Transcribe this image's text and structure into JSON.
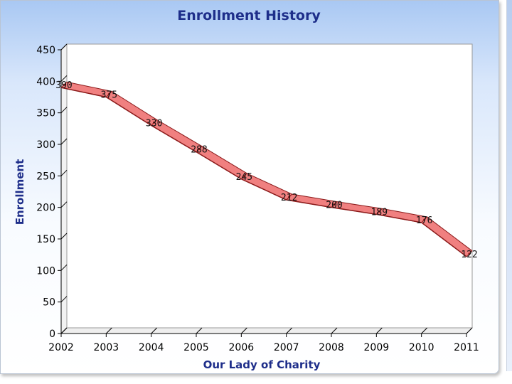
{
  "chart_data": {
    "type": "line",
    "title": "Enrollment History",
    "xlabel": "Our Lady of Charity",
    "ylabel": "Enrollment",
    "categories": [
      "2002",
      "2003",
      "2004",
      "2005",
      "2006",
      "2007",
      "2008",
      "2009",
      "2010",
      "2011"
    ],
    "series": [
      {
        "name": "Enrollment",
        "values": [
          390,
          375,
          330,
          288,
          245,
          212,
          200,
          189,
          176,
          122
        ]
      }
    ],
    "ylim": [
      0,
      450
    ],
    "yticks": [
      0,
      50,
      100,
      150,
      200,
      250,
      300,
      350,
      400,
      450
    ],
    "grid": false,
    "line_color": "#f08080",
    "line_edge_color": "#8b1a1a"
  }
}
